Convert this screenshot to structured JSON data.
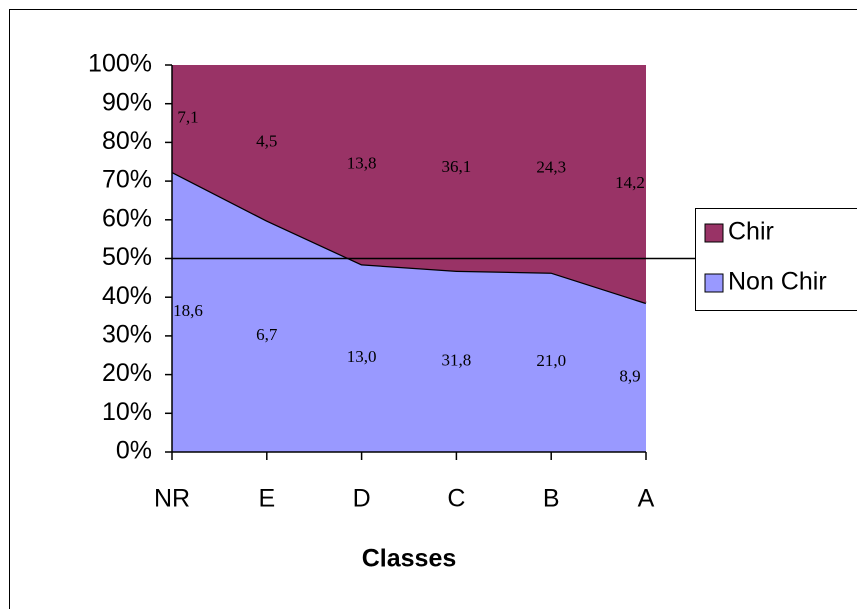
{
  "chart_data": {
    "type": "stacked_area_100",
    "x_label": "Classes",
    "categories": [
      "NR",
      "E",
      "D",
      "C",
      "B",
      "A"
    ],
    "series": [
      {
        "name": "Non Chir",
        "color": "#9999ff",
        "values": [
          18.6,
          6.7,
          13.0,
          31.8,
          21.0,
          8.9
        ],
        "value_labels": [
          "18,6",
          "6,7",
          "13,0",
          "31,8",
          "21,0",
          "8,9"
        ]
      },
      {
        "name": "Chir",
        "color": "#993366",
        "values": [
          7.1,
          4.5,
          13.8,
          36.1,
          24.3,
          14.2
        ],
        "value_labels": [
          "7,1",
          "4,5",
          "13,8",
          "36,1",
          "24,3",
          "14,2"
        ]
      }
    ],
    "ylim": [
      0,
      100
    ],
    "yticks": [
      {
        "value": 0,
        "label": "0%"
      },
      {
        "value": 10,
        "label": "10%"
      },
      {
        "value": 20,
        "label": "20%"
      },
      {
        "value": 30,
        "label": "30%"
      },
      {
        "value": 40,
        "label": "40%"
      },
      {
        "value": 50,
        "label": "50%"
      },
      {
        "value": 60,
        "label": "60%"
      },
      {
        "value": 70,
        "label": "70%"
      },
      {
        "value": 80,
        "label": "80%"
      },
      {
        "value": 90,
        "label": "90%"
      },
      {
        "value": 100,
        "label": "100%"
      }
    ],
    "reference_line": 50,
    "legend": "right"
  }
}
